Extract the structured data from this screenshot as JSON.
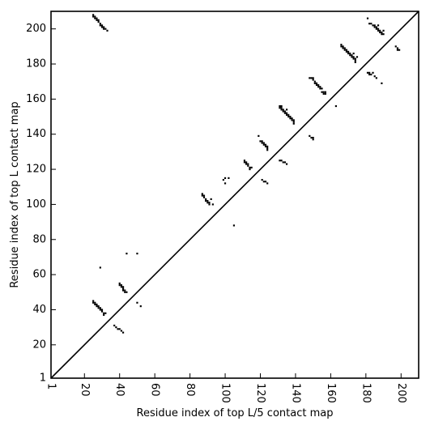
{
  "chart_data": {
    "type": "scatter",
    "title": "",
    "xlabel": "Residue index of top L/5 contact map",
    "ylabel": "Residue index of top L contact map",
    "xlim": [
      1,
      210
    ],
    "ylim": [
      1,
      210
    ],
    "xticks": [
      1,
      20,
      40,
      60,
      80,
      100,
      120,
      140,
      160,
      180,
      200
    ],
    "yticks": [
      1,
      20,
      40,
      60,
      80,
      100,
      120,
      140,
      160,
      180,
      200
    ],
    "grid": false,
    "diagonal": true,
    "point_color": "#000000",
    "series": [
      {
        "points": [
          [
            25,
            208
          ],
          [
            25,
            207
          ],
          [
            26,
            207
          ],
          [
            26,
            206
          ],
          [
            27,
            206
          ],
          [
            27,
            205
          ],
          [
            28,
            205
          ],
          [
            28,
            204
          ],
          [
            29,
            203
          ],
          [
            29,
            202
          ],
          [
            30,
            202
          ],
          [
            30,
            201
          ],
          [
            31,
            201
          ],
          [
            31,
            200
          ],
          [
            32,
            200
          ],
          [
            33,
            199
          ],
          [
            25,
            45
          ],
          [
            25,
            44
          ],
          [
            26,
            44
          ],
          [
            26,
            43
          ],
          [
            27,
            43
          ],
          [
            27,
            42
          ],
          [
            28,
            42
          ],
          [
            28,
            41
          ],
          [
            29,
            41
          ],
          [
            29,
            40
          ],
          [
            30,
            40
          ],
          [
            30,
            39
          ],
          [
            31,
            38
          ],
          [
            31,
            37
          ],
          [
            32,
            38
          ],
          [
            29,
            64
          ],
          [
            37,
            31
          ],
          [
            38,
            30
          ],
          [
            39,
            29
          ],
          [
            40,
            29
          ],
          [
            41,
            28
          ],
          [
            42,
            27
          ],
          [
            40,
            55
          ],
          [
            40,
            54
          ],
          [
            41,
            54
          ],
          [
            41,
            53
          ],
          [
            42,
            53
          ],
          [
            42,
            52
          ],
          [
            42,
            51
          ],
          [
            43,
            51
          ],
          [
            43,
            50
          ],
          [
            44,
            50
          ],
          [
            44,
            72
          ],
          [
            50,
            72
          ],
          [
            50,
            44
          ],
          [
            52,
            42
          ],
          [
            87,
            106
          ],
          [
            87,
            105
          ],
          [
            88,
            105
          ],
          [
            88,
            104
          ],
          [
            89,
            103
          ],
          [
            89,
            102
          ],
          [
            90,
            102
          ],
          [
            90,
            101
          ],
          [
            91,
            101
          ],
          [
            91,
            100
          ],
          [
            92,
            103
          ],
          [
            93,
            100
          ],
          [
            99,
            114
          ],
          [
            100,
            115
          ],
          [
            100,
            112
          ],
          [
            102,
            115
          ],
          [
            105,
            88
          ],
          [
            111,
            125
          ],
          [
            111,
            124
          ],
          [
            112,
            124
          ],
          [
            112,
            123
          ],
          [
            113,
            123
          ],
          [
            113,
            122
          ],
          [
            114,
            121
          ],
          [
            114,
            120
          ],
          [
            115,
            121
          ],
          [
            119,
            139
          ],
          [
            120,
            136
          ],
          [
            121,
            136
          ],
          [
            121,
            135
          ],
          [
            122,
            135
          ],
          [
            122,
            134
          ],
          [
            123,
            134
          ],
          [
            123,
            133
          ],
          [
            124,
            133
          ],
          [
            124,
            132
          ],
          [
            124,
            131
          ],
          [
            121,
            114
          ],
          [
            122,
            113
          ],
          [
            123,
            113
          ],
          [
            124,
            112
          ],
          [
            131,
            156
          ],
          [
            131,
            155
          ],
          [
            132,
            156
          ],
          [
            132,
            155
          ],
          [
            132,
            154
          ],
          [
            133,
            154
          ],
          [
            133,
            153
          ],
          [
            134,
            153
          ],
          [
            134,
            152
          ],
          [
            135,
            152
          ],
          [
            135,
            151
          ],
          [
            136,
            151
          ],
          [
            136,
            150
          ],
          [
            137,
            150
          ],
          [
            137,
            149
          ],
          [
            138,
            149
          ],
          [
            138,
            148
          ],
          [
            139,
            148
          ],
          [
            139,
            147
          ],
          [
            139,
            146
          ],
          [
            135,
            154
          ],
          [
            131,
            125
          ],
          [
            132,
            125
          ],
          [
            133,
            124
          ],
          [
            134,
            124
          ],
          [
            135,
            123
          ],
          [
            148,
            172
          ],
          [
            149,
            172
          ],
          [
            150,
            172
          ],
          [
            150,
            171
          ],
          [
            151,
            170
          ],
          [
            151,
            169
          ],
          [
            152,
            169
          ],
          [
            152,
            168
          ],
          [
            153,
            168
          ],
          [
            153,
            167
          ],
          [
            154,
            167
          ],
          [
            154,
            166
          ],
          [
            155,
            166
          ],
          [
            155,
            164
          ],
          [
            156,
            164
          ],
          [
            156,
            163
          ],
          [
            157,
            163
          ],
          [
            157,
            164
          ],
          [
            148,
            139
          ],
          [
            149,
            138
          ],
          [
            150,
            138
          ],
          [
            150,
            137
          ],
          [
            163,
            156
          ],
          [
            166,
            191
          ],
          [
            166,
            190
          ],
          [
            167,
            190
          ],
          [
            167,
            189
          ],
          [
            168,
            189
          ],
          [
            168,
            188
          ],
          [
            169,
            188
          ],
          [
            169,
            187
          ],
          [
            170,
            187
          ],
          [
            170,
            186
          ],
          [
            171,
            186
          ],
          [
            171,
            185
          ],
          [
            172,
            185
          ],
          [
            172,
            184
          ],
          [
            173,
            186
          ],
          [
            173,
            184
          ],
          [
            173,
            183
          ],
          [
            174,
            183
          ],
          [
            174,
            182
          ],
          [
            174,
            181
          ],
          [
            175,
            184
          ],
          [
            181,
            206
          ],
          [
            182,
            203
          ],
          [
            183,
            203
          ],
          [
            184,
            202
          ],
          [
            185,
            202
          ],
          [
            185,
            201
          ],
          [
            186,
            201
          ],
          [
            186,
            200
          ],
          [
            187,
            200
          ],
          [
            187,
            199
          ],
          [
            188,
            199
          ],
          [
            188,
            198
          ],
          [
            189,
            198
          ],
          [
            189,
            197
          ],
          [
            190,
            197
          ],
          [
            190,
            199
          ],
          [
            187,
            202
          ],
          [
            181,
            175
          ],
          [
            182,
            175
          ],
          [
            182,
            174
          ],
          [
            183,
            174
          ],
          [
            184,
            175
          ],
          [
            185,
            173
          ],
          [
            186,
            172
          ],
          [
            189,
            169
          ],
          [
            197,
            190
          ],
          [
            198,
            189
          ],
          [
            198,
            188
          ],
          [
            199,
            188
          ]
        ]
      }
    ]
  }
}
